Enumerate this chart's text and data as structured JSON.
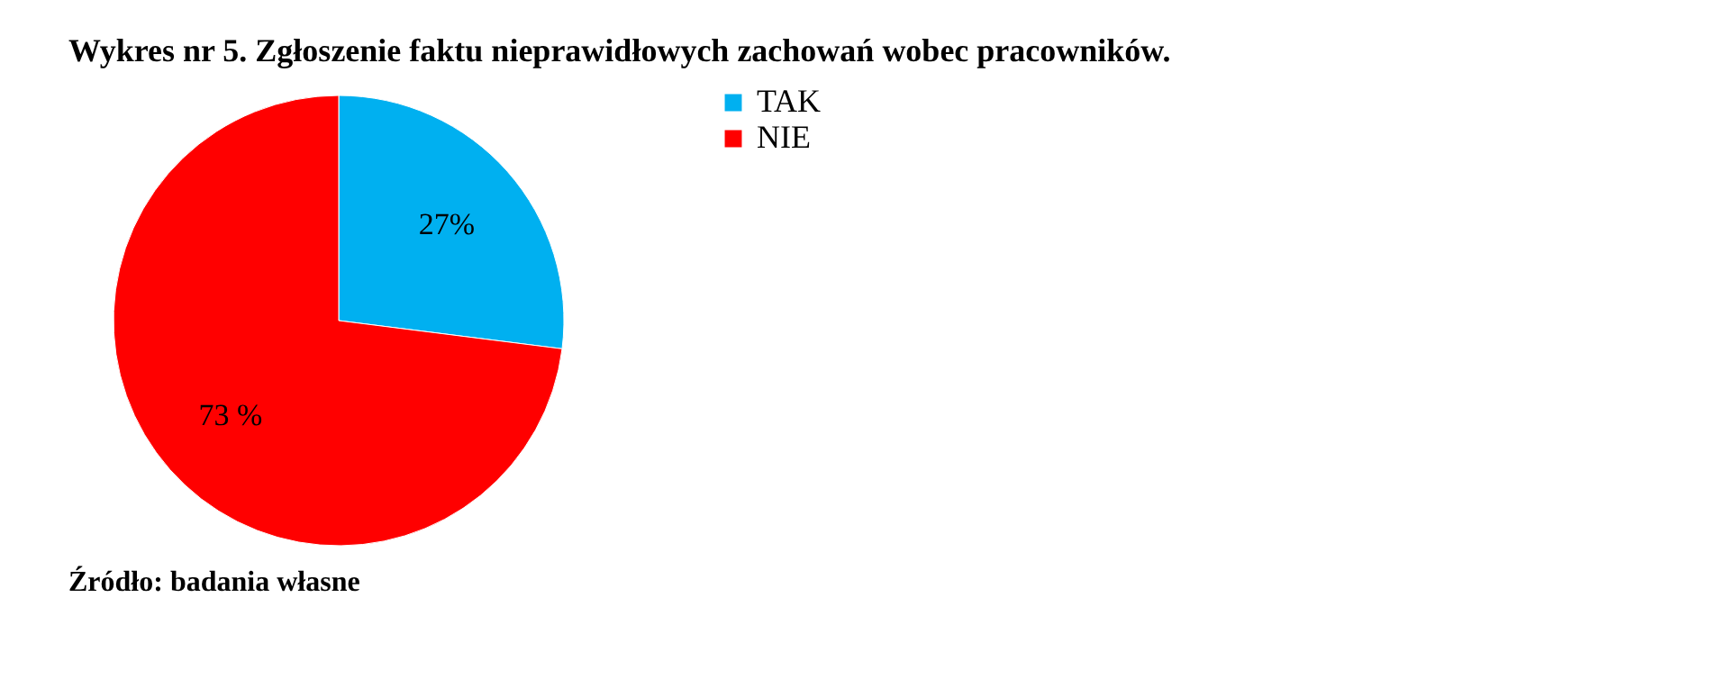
{
  "chart_data": {
    "type": "pie",
    "title": "Wykres nr 5. Zgłoszenie faktu nieprawidłowych zachowań wobec pracowników.",
    "categories": [
      "TAK",
      "NIE"
    ],
    "values": [
      27,
      73
    ],
    "colors": [
      "#00b0f0",
      "#ff0000"
    ],
    "value_labels": [
      "27%",
      "73 %"
    ],
    "legend": "right",
    "annotations": [
      "Źródło: badania własne"
    ]
  }
}
